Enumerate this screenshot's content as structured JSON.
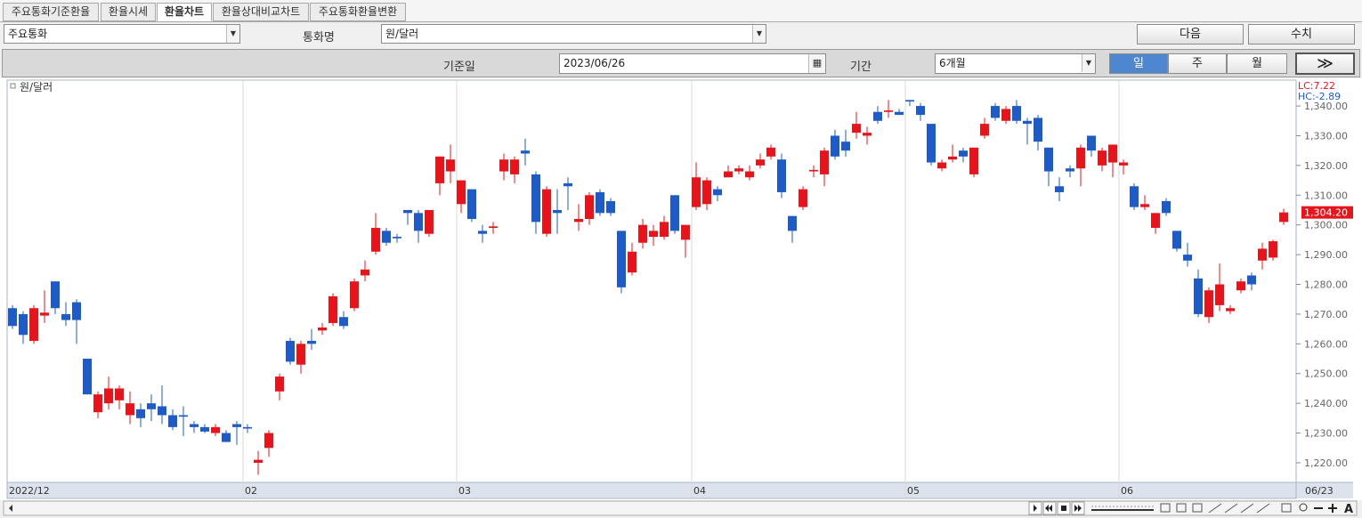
{
  "ui": {
    "tabs": [
      "주요통화기준환율",
      "환율시세",
      "환율차트",
      "환율상대비교차트",
      "주요통화환율변환"
    ],
    "currency_group": "주요통화",
    "currency_name_label": "통화명",
    "currency_name": "원/달러",
    "next_button": "다음",
    "values_button": "수치",
    "base_date_label": "기준일",
    "base_date": "2023/06/26",
    "period_label": "기간",
    "period": "6개월",
    "interval_buttons": [
      "일",
      "주",
      "월"
    ],
    "go_button": "≫",
    "zoom_label": "A"
  },
  "chart_data": {
    "type": "candlestick",
    "up_color": "#e8141c",
    "down_color": "#1e5bc6",
    "annotations": [
      "LC:7.22",
      "HC:-2.89"
    ],
    "last_price_label": "1,304.20",
    "categories": [
      "2022/12",
      null,
      null,
      null,
      null,
      null,
      null,
      null,
      null,
      null,
      null,
      null,
      null,
      null,
      null,
      null,
      null,
      null,
      null,
      null,
      null,
      null,
      "02",
      null,
      null,
      null,
      null,
      null,
      null,
      null,
      null,
      null,
      null,
      null,
      null,
      null,
      null,
      null,
      null,
      null,
      null,
      null,
      "03",
      null,
      null,
      null,
      null,
      null,
      null,
      null,
      null,
      null,
      null,
      null,
      null,
      null,
      null,
      null,
      null,
      null,
      null,
      null,
      null,
      null,
      "04",
      null,
      null,
      null,
      null,
      null,
      null,
      null,
      null,
      null,
      null,
      null,
      null,
      null,
      null,
      null,
      null,
      null,
      null,
      null,
      "05",
      null,
      null,
      null,
      null,
      null,
      null,
      null,
      null,
      null,
      null,
      null,
      null,
      null,
      null,
      null,
      null,
      null,
      null,
      null,
      "06",
      null,
      null,
      null,
      null,
      null,
      null,
      null,
      null,
      null,
      null,
      null,
      null,
      null,
      null,
      "06/23"
    ],
    "series": [
      {
        "name": "원/달러",
        "open": [
          1272,
          1270,
          1261,
          1269.5,
          1281,
          1270,
          1274,
          1255,
          1237,
          1240,
          1241,
          1236,
          1238,
          1240,
          1239,
          1236,
          1236,
          1233,
          1232,
          1230,
          1230,
          1233,
          1232,
          1220,
          1225,
          1244,
          1261,
          1253,
          1261,
          1264.5,
          1267,
          1269,
          1272,
          1283,
          1291,
          1298,
          1296,
          1305,
          1304,
          1297,
          1314,
          1318,
          1307,
          1312,
          1298,
          1299,
          1318,
          1317,
          1325,
          1317,
          1297,
          1305,
          1314,
          1301,
          1302,
          1311,
          1308,
          1298,
          1284,
          1294,
          1296,
          1296,
          1310,
          1295,
          1306,
          1307,
          1312,
          1316,
          1318,
          1316,
          1320,
          1323,
          1322,
          1303,
          1306,
          1318,
          1317,
          1330,
          1328,
          1331,
          1330,
          1338,
          1338,
          1338,
          1342,
          1340,
          1334,
          1319,
          1322,
          1325,
          1317,
          1330,
          1340,
          1335,
          1340,
          1335,
          1336,
          1326,
          1313,
          1319,
          1319,
          1330,
          1320,
          1321,
          1320,
          1313,
          1306,
          1299,
          1308,
          1298,
          1290,
          1282,
          1269,
          1273,
          1271,
          1278,
          1283,
          1288,
          1289,
          1301
        ],
        "high": [
          1273,
          1271,
          1273,
          1278,
          1281,
          1274,
          1275,
          1255,
          1244,
          1249,
          1246,
          1244,
          1240,
          1243,
          1246,
          1238,
          1239,
          1234,
          1233,
          1233,
          1231,
          1234,
          1233,
          1224,
          1231,
          1250,
          1262,
          1261,
          1265,
          1267,
          1277,
          1271,
          1282,
          1288,
          1304,
          1299,
          1297,
          1305,
          1305,
          1305,
          1323,
          1327,
          1315,
          1312,
          1300,
          1301,
          1324,
          1323,
          1329,
          1318,
          1313,
          1312,
          1316,
          1307,
          1311,
          1312,
          1309,
          1298,
          1294,
          1302,
          1300,
          1303,
          1310,
          1300,
          1321,
          1316,
          1313,
          1320,
          1320,
          1320,
          1324,
          1327,
          1324,
          1303,
          1313,
          1320,
          1326,
          1332,
          1332,
          1338,
          1333,
          1340,
          1342,
          1339,
          1342,
          1341,
          1334,
          1322,
          1327,
          1326,
          1326,
          1336,
          1341,
          1340,
          1342,
          1336,
          1337,
          1326,
          1316,
          1320,
          1327,
          1330,
          1326,
          1327,
          1322,
          1314,
          1310,
          1304,
          1309,
          1298,
          1294,
          1285,
          1279,
          1287,
          1273,
          1282,
          1284,
          1294,
          1295,
          1305.5
        ],
        "low": [
          1265,
          1260,
          1260,
          1267,
          1270,
          1266,
          1260,
          1243,
          1235,
          1238,
          1238,
          1233,
          1232,
          1234,
          1233,
          1231,
          1229,
          1230,
          1230,
          1229,
          1227,
          1226,
          1230,
          1216,
          1222,
          1241,
          1253,
          1250,
          1258,
          1263,
          1266,
          1265,
          1271,
          1281,
          1290,
          1293,
          1294,
          1300,
          1294,
          1296,
          1310,
          1314,
          1304,
          1301,
          1294,
          1297,
          1315,
          1314,
          1320,
          1297,
          1296,
          1297,
          1305,
          1298,
          1300,
          1303,
          1303,
          1277,
          1283,
          1292,
          1293,
          1295,
          1297,
          1289,
          1305,
          1305,
          1308,
          1316,
          1317,
          1315,
          1319,
          1322,
          1309,
          1294,
          1305,
          1316,
          1313,
          1322,
          1323,
          1329,
          1327,
          1334,
          1336,
          1337,
          1340,
          1335,
          1320,
          1318,
          1321,
          1321,
          1316,
          1329,
          1335,
          1334,
          1334,
          1327,
          1325,
          1313,
          1308,
          1316,
          1313,
          1323,
          1318,
          1316,
          1317,
          1305,
          1305,
          1297,
          1303,
          1291,
          1286,
          1269,
          1267,
          1271,
          1270,
          1277,
          1278,
          1285,
          1288,
          1300
        ],
        "close": [
          1266,
          1263,
          1272,
          1270.5,
          1272,
          1268,
          1268,
          1243,
          1243,
          1245,
          1245,
          1240,
          1235,
          1238,
          1236,
          1232,
          1235.5,
          1232,
          1230.5,
          1232,
          1227,
          1232,
          1231.5,
          1221,
          1230,
          1249,
          1254,
          1260,
          1260,
          1265.5,
          1276,
          1266,
          1281,
          1285,
          1299,
          1294,
          1295.5,
          1304,
          1298,
          1305,
          1323,
          1322,
          1315,
          1302,
          1297,
          1299.5,
          1322,
          1322,
          1324,
          1301,
          1312,
          1304,
          1313,
          1302,
          1310,
          1304,
          1304,
          1279,
          1291,
          1300,
          1298,
          1301,
          1298,
          1300,
          1316,
          1315,
          1310,
          1318,
          1319,
          1318,
          1322,
          1326,
          1311,
          1298,
          1312,
          1318.5,
          1325,
          1323,
          1325,
          1334,
          1331,
          1335,
          1338.5,
          1337,
          1341.5,
          1337,
          1321,
          1321,
          1323,
          1323,
          1326,
          1334,
          1336,
          1339,
          1335,
          1334,
          1328,
          1318,
          1311,
          1318,
          1326,
          1325,
          1325,
          1327,
          1321,
          1306,
          1307,
          1304,
          1304,
          1292,
          1288,
          1270,
          1278,
          1280,
          1272,
          1281,
          1280,
          1292,
          1294.5,
          1304.2
        ]
      }
    ],
    "ylim": [
      1213.4,
      1348.7
    ],
    "yticks": [
      {
        "value": 1220,
        "label": "1,220.00"
      },
      {
        "value": 1230,
        "label": "1,230.00"
      },
      {
        "value": 1240,
        "label": "1,240.00"
      },
      {
        "value": 1250,
        "label": "1,250.00"
      },
      {
        "value": 1260,
        "label": "1,260.00"
      },
      {
        "value": 1270,
        "label": "1,270.00"
      },
      {
        "value": 1280,
        "label": "1,280.00"
      },
      {
        "value": 1290,
        "label": "1,290.00"
      },
      {
        "value": 1300,
        "label": "1,300.00"
      },
      {
        "value": 1310,
        "label": "1,310.00"
      },
      {
        "value": 1320,
        "label": "1,320.00"
      },
      {
        "value": 1330,
        "label": "1,330.00"
      },
      {
        "value": 1340,
        "label": "1,340.00"
      }
    ]
  }
}
